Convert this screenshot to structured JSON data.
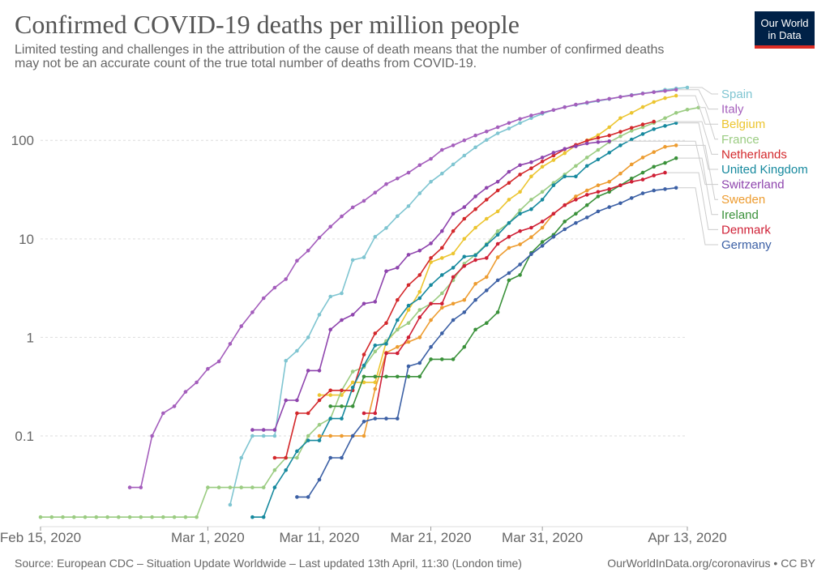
{
  "header": {
    "title": "Confirmed COVID-19 deaths per million people",
    "subtitle_line1": "Limited testing and challenges in the attribution of the cause of death means that the number of confirmed deaths",
    "subtitle_line2": "may not be an accurate count of the true total number of deaths from COVID-19."
  },
  "logo": {
    "line1": "Our World",
    "line2": "in Data",
    "bg_color": "#002147",
    "accent_color": "#dc2c24"
  },
  "footer": {
    "source": "Source: European CDC – Situation Update Worldwide – Last updated 13th April, 11:30 (London time)",
    "credit": "OurWorldInData.org/coronavirus • CC BY"
  },
  "chart_data": {
    "type": "line",
    "title": "Confirmed COVID-19 deaths per million people",
    "xlabel": "",
    "ylabel": "",
    "y_scale": "log",
    "ylim": [
      0.012,
      400
    ],
    "x_range": [
      "2020-02-15",
      "2020-04-13"
    ],
    "x_ticks": [
      {
        "date": "2020-02-15",
        "label": "Feb 15, 2020"
      },
      {
        "date": "2020-03-01",
        "label": "Mar 1, 2020"
      },
      {
        "date": "2020-03-11",
        "label": "Mar 11, 2020"
      },
      {
        "date": "2020-03-21",
        "label": "Mar 21, 2020"
      },
      {
        "date": "2020-03-31",
        "label": "Mar 31, 2020"
      },
      {
        "date": "2020-04-13",
        "label": "Apr 13, 2020"
      }
    ],
    "y_ticks": [
      {
        "value": 0.1,
        "label": "0.1"
      },
      {
        "value": 1,
        "label": "1"
      },
      {
        "value": 10,
        "label": "10"
      },
      {
        "value": 100,
        "label": "100"
      }
    ],
    "grid": "horizontal dashed",
    "legend": "right, ordered by latest value, with connector lines",
    "series": [
      {
        "name": "Spain",
        "color": "#7fc5d1",
        "start": "2020-03-03",
        "values": [
          0.02,
          0.06,
          0.1,
          0.1,
          0.1,
          0.58,
          0.73,
          1.0,
          1.7,
          2.6,
          2.8,
          6.1,
          6.5,
          10.5,
          12.9,
          17,
          21.5,
          29,
          38,
          46,
          57,
          70,
          85,
          101,
          118,
          132,
          150,
          168,
          186,
          203,
          218,
          229,
          239,
          251,
          262,
          276,
          289,
          300,
          310,
          326,
          336,
          344
        ]
      },
      {
        "name": "Italy",
        "color": "#a45ebc",
        "start": "2020-02-23",
        "values": [
          0.03,
          0.03,
          0.1,
          0.17,
          0.2,
          0.28,
          0.35,
          0.48,
          0.57,
          0.86,
          1.3,
          1.8,
          2.5,
          3.2,
          3.9,
          6.0,
          7.6,
          10.3,
          13.3,
          16.9,
          20.9,
          24.3,
          29.5,
          36,
          41,
          47,
          56,
          65,
          80,
          89,
          100,
          112,
          123,
          136,
          150,
          165,
          179,
          191,
          203,
          217,
          231,
          242,
          254,
          264,
          276,
          286,
          298,
          308,
          317,
          326
        ]
      },
      {
        "name": "Belgium",
        "color": "#ecc530",
        "start": "2020-03-11",
        "values": [
          0.26,
          0.26,
          0.26,
          0.35,
          0.35,
          0.35,
          0.9,
          1.2,
          1.9,
          2.9,
          5.8,
          6.4,
          7.1,
          10,
          13,
          16,
          19,
          25,
          30,
          43,
          54,
          63,
          74,
          89,
          100,
          113,
          136,
          168,
          190,
          218,
          245,
          268,
          284
        ]
      },
      {
        "name": "France",
        "color": "#9bcc82",
        "start": "2020-02-15",
        "values": [
          0.015,
          0.015,
          0.015,
          0.015,
          0.015,
          0.015,
          0.015,
          0.015,
          0.015,
          0.015,
          0.015,
          0.015,
          0.015,
          0.015,
          0.015,
          0.03,
          0.03,
          0.03,
          0.03,
          0.03,
          0.03,
          0.045,
          0.06,
          0.06,
          0.1,
          0.13,
          0.15,
          0.29,
          0.45,
          0.5,
          0.72,
          0.92,
          1.2,
          1.4,
          1.9,
          2.2,
          2.8,
          3.8,
          5.6,
          6.9,
          8.9,
          12,
          14.5,
          19.5,
          25,
          30,
          37,
          45,
          55,
          67,
          80,
          96,
          110,
          125,
          136,
          150,
          168,
          190,
          205,
          215
        ]
      },
      {
        "name": "Netherlands",
        "color": "#d3282b",
        "start": "2020-03-07",
        "values": [
          0.06,
          0.06,
          0.17,
          0.17,
          0.23,
          0.29,
          0.29,
          0.29,
          0.67,
          1.1,
          1.4,
          2.4,
          3.4,
          4.3,
          6.4,
          8.1,
          12,
          16,
          20,
          25,
          31,
          37,
          45,
          52,
          61,
          70,
          81,
          90,
          99,
          106,
          112,
          122,
          134,
          145,
          155
        ]
      },
      {
        "name": "United Kingdom",
        "color": "#16899e",
        "start": "2020-03-05",
        "values": [
          0.015,
          0.015,
          0.03,
          0.045,
          0.07,
          0.09,
          0.09,
          0.15,
          0.15,
          0.31,
          0.52,
          0.83,
          0.86,
          1.5,
          2.1,
          2.5,
          3.4,
          4.3,
          5.1,
          6.6,
          6.8,
          8.7,
          11,
          14.5,
          18,
          20,
          25,
          35,
          43,
          43,
          55,
          64,
          75,
          89,
          102,
          116,
          130,
          140,
          150
        ]
      },
      {
        "name": "Switzerland",
        "color": "#8e44ad",
        "start": "2020-03-05",
        "values": [
          0.115,
          0.115,
          0.115,
          0.23,
          0.23,
          0.46,
          0.46,
          1.2,
          1.5,
          1.7,
          2.2,
          2.3,
          4.7,
          5.1,
          6.9,
          7.6,
          9.0,
          12,
          18,
          21,
          27,
          33,
          38,
          48,
          56,
          60,
          67,
          75,
          82,
          87,
          93,
          96,
          98
        ]
      },
      {
        "name": "Sweden",
        "color": "#ed9c30",
        "start": "2020-03-11",
        "values": [
          0.1,
          0.1,
          0.1,
          0.1,
          0.1,
          0.3,
          0.7,
          0.8,
          0.9,
          1.0,
          1.5,
          2.0,
          2.2,
          2.4,
          3.5,
          4.1,
          6.5,
          8.1,
          8.8,
          10.4,
          13,
          18,
          22,
          27,
          31,
          35,
          38,
          46,
          57,
          67,
          76,
          86,
          89
        ]
      },
      {
        "name": "Ireland",
        "color": "#3a913a",
        "start": "2020-03-12",
        "values": [
          0.2,
          0.2,
          0.2,
          0.4,
          0.4,
          0.4,
          0.4,
          0.4,
          0.4,
          0.6,
          0.6,
          0.6,
          0.8,
          1.2,
          1.4,
          1.8,
          3.8,
          4.3,
          7.2,
          9.3,
          11,
          15,
          18,
          22,
          27,
          30,
          35,
          41,
          47,
          54,
          59,
          66
        ]
      },
      {
        "name": "Denmark",
        "color": "#cf1f35",
        "start": "2020-03-15",
        "values": [
          0.17,
          0.17,
          0.69,
          0.69,
          1.0,
          1.6,
          2.2,
          2.2,
          4.1,
          5.3,
          6.1,
          6.4,
          8.9,
          10.5,
          12,
          13,
          15,
          18,
          22,
          25,
          28,
          30,
          32,
          35,
          38,
          40,
          44,
          47
        ]
      },
      {
        "name": "Germany",
        "color": "#3c60a5",
        "start": "2020-03-09",
        "values": [
          0.024,
          0.024,
          0.036,
          0.06,
          0.06,
          0.1,
          0.14,
          0.15,
          0.15,
          0.15,
          0.51,
          0.55,
          0.8,
          1.1,
          1.5,
          1.8,
          2.4,
          3.0,
          3.8,
          4.5,
          5.5,
          7.0,
          8.5,
          10.5,
          12.5,
          14.5,
          16.5,
          19,
          21,
          23,
          26,
          29,
          31,
          32,
          33
        ]
      }
    ]
  }
}
